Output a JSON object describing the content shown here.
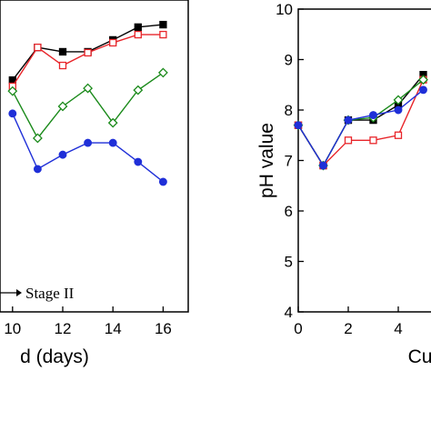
{
  "chart_data": [
    {
      "type": "line",
      "xlabel": "d (days)",
      "annotation": "Stage II",
      "x": [
        10,
        11,
        12,
        13,
        14,
        15,
        16
      ],
      "xlim": [
        9.5,
        17
      ],
      "ylim": [
        0,
        100
      ],
      "xticks": [
        10,
        12,
        14,
        16
      ],
      "series": [
        {
          "color": "#000000",
          "marker": "square-filled",
          "values": [
            74.3,
            84.8,
            83.4,
            83.4,
            87.2,
            91.3,
            92.1
          ]
        },
        {
          "color": "#e8252a",
          "marker": "square-open",
          "values": [
            72.3,
            84.8,
            79.0,
            83.1,
            86.3,
            88.9,
            88.9
          ]
        },
        {
          "color": "#1a8a1a",
          "marker": "diamond-open",
          "values": [
            70.8,
            55.7,
            65.9,
            71.7,
            60.6,
            71.1,
            76.7
          ]
        },
        {
          "color": "#1f2fd8",
          "marker": "circle-filled",
          "values": [
            63.6,
            45.8,
            50.4,
            54.2,
            54.2,
            48.1,
            41.7
          ]
        }
      ]
    },
    {
      "type": "line",
      "xlabel": "Cu",
      "ylabel": "pH value",
      "x": [
        0,
        1,
        2,
        3,
        4,
        5
      ],
      "xlim": [
        0,
        6
      ],
      "ylim": [
        4,
        10
      ],
      "xticks": [
        0,
        2,
        4
      ],
      "yticks": [
        4,
        5,
        6,
        7,
        8,
        9,
        10
      ],
      "series": [
        {
          "color": "#000000",
          "marker": "square-filled",
          "values": [
            7.7,
            6.9,
            7.8,
            7.8,
            8.1,
            8.7
          ]
        },
        {
          "color": "#e8252a",
          "marker": "square-open",
          "values": [
            7.7,
            6.9,
            7.4,
            7.4,
            7.5,
            8.6
          ]
        },
        {
          "color": "#1a8a1a",
          "marker": "diamond-open",
          "values": [
            7.7,
            6.9,
            7.8,
            7.85,
            8.2,
            8.6
          ]
        },
        {
          "color": "#1f2fd8",
          "marker": "circle-filled",
          "values": [
            7.7,
            6.9,
            7.8,
            7.9,
            8.0,
            8.4
          ]
        }
      ]
    }
  ]
}
